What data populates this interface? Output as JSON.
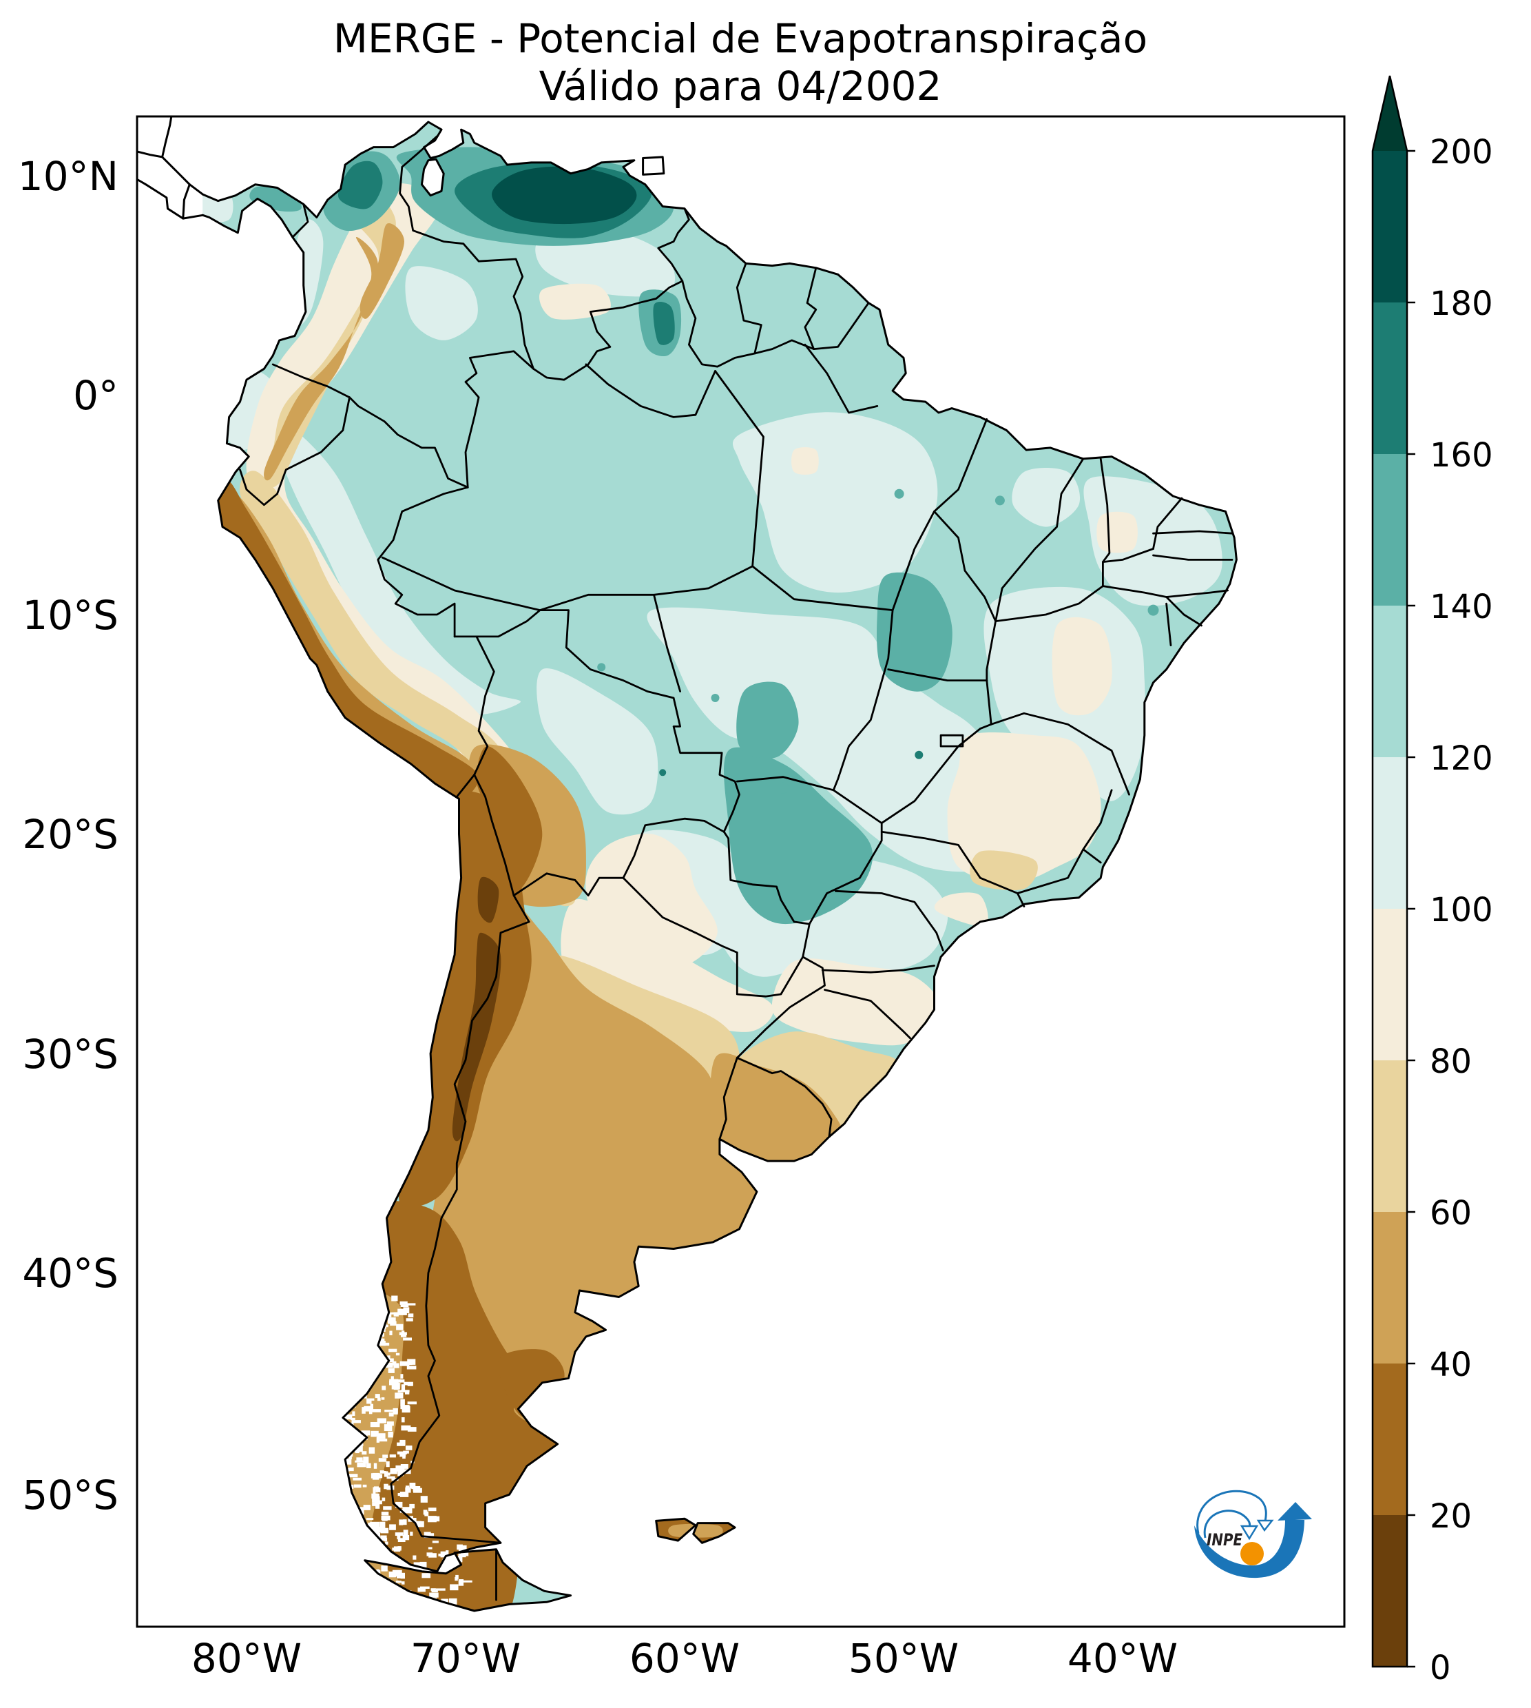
{
  "chart_data": {
    "type": "heatmap",
    "title": "MERGE - Potencial de Evapotranspiração",
    "subtitle": "Válido para 04/2002",
    "xlabel": "",
    "ylabel": "",
    "xlim": [
      -85,
      -30
    ],
    "ylim": [
      -56,
      12.7
    ],
    "grid": false,
    "x_ticks": {
      "values": [
        -80,
        -70,
        -60,
        -50,
        -40
      ],
      "labels": [
        "80°W",
        "70°W",
        "60°W",
        "50°W",
        "40°W"
      ]
    },
    "y_ticks": {
      "values": [
        10,
        0,
        -10,
        -20,
        -30,
        -40,
        -50
      ],
      "labels": [
        "10°N",
        "0°",
        "10°S",
        "20°S",
        "30°S",
        "40°S",
        "50°S"
      ]
    },
    "colorbar": {
      "levels": [
        0,
        20,
        40,
        60,
        80,
        100,
        120,
        140,
        160,
        180,
        200
      ],
      "tick_labels": [
        "0",
        "20",
        "40",
        "60",
        "80",
        "100",
        "120",
        "140",
        "160",
        "180",
        "200"
      ],
      "colors": [
        "#6b400c",
        "#a36a1e",
        "#cfa256",
        "#e9d49e",
        "#f5eddb",
        "#ddefec",
        "#a6dbd3",
        "#5bb0a6",
        "#1d7d73",
        "#02504a"
      ],
      "extend": "max",
      "over_color": "#003c30",
      "location": "right"
    }
  },
  "logo": {
    "text": "INPE",
    "blue": "#1a75b8",
    "orange": "#f39200"
  }
}
